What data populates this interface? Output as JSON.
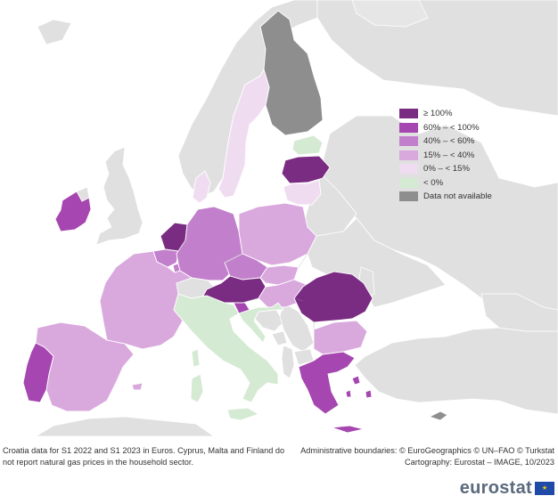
{
  "colors": {
    "sea": "#ffffff",
    "land_other": "#e0e0e0",
    "border": "#9b9b9b",
    "ge100": "#7a2b82",
    "r60_100": "#a646b0",
    "r40_60": "#c27fcb",
    "r15_40": "#d9a9de",
    "r0_15": "#f0dcf1",
    "neg": "#d5ead3",
    "na": "#8e8e8e",
    "brand": "#5b6a7d",
    "flag": "#1f4aa8"
  },
  "legend": [
    {
      "label": "≥ 100%",
      "color": "#7a2b82"
    },
    {
      "label": "60% – < 100%",
      "color": "#a646b0"
    },
    {
      "label": "40% – < 60%",
      "color": "#c27fcb"
    },
    {
      "label": "15% – < 40%",
      "color": "#d9a9de"
    },
    {
      "label": "0% – < 15%",
      "color": "#f0dcf1"
    },
    {
      "label": "< 0%",
      "color": "#d5ead3"
    },
    {
      "label": "Data not available",
      "color": "#8e8e8e"
    }
  ],
  "footnote_left": "Croatia data for S1 2022 and S1 2023 in Euros. Cyprus, Malta and Finland do not report natural gas prices in the household sector.",
  "footnote_right_1": "Administrative boundaries: © EuroGeographics © UN–FAO © Turkstat",
  "footnote_right_2": "Cartography: Eurostat – IMAGE, 10/2023",
  "brand": "eurostat",
  "flag_icon": "★",
  "map": {
    "regions": [
      {
        "id": "romania",
        "category": "ge100"
      },
      {
        "id": "austria",
        "category": "ge100"
      },
      {
        "id": "latvia",
        "category": "ge100"
      },
      {
        "id": "netherlands",
        "category": "ge100"
      },
      {
        "id": "ireland",
        "category": "r60_100"
      },
      {
        "id": "portugal",
        "category": "r60_100"
      },
      {
        "id": "greece",
        "category": "r60_100"
      },
      {
        "id": "slovenia",
        "category": "r60_100"
      },
      {
        "id": "germany",
        "category": "r40_60"
      },
      {
        "id": "czechia",
        "category": "r40_60"
      },
      {
        "id": "belgium",
        "category": "r40_60"
      },
      {
        "id": "luxembourg",
        "category": "r40_60"
      },
      {
        "id": "france",
        "category": "r15_40"
      },
      {
        "id": "spain",
        "category": "r15_40"
      },
      {
        "id": "poland",
        "category": "r15_40"
      },
      {
        "id": "slovakia",
        "category": "r15_40"
      },
      {
        "id": "hungary",
        "category": "r15_40"
      },
      {
        "id": "bulgaria",
        "category": "r15_40"
      },
      {
        "id": "sweden",
        "category": "r0_15"
      },
      {
        "id": "denmark",
        "category": "r0_15"
      },
      {
        "id": "lithuania",
        "category": "r0_15"
      },
      {
        "id": "italy",
        "category": "neg"
      },
      {
        "id": "estonia",
        "category": "neg"
      },
      {
        "id": "croatia",
        "category": "neg"
      },
      {
        "id": "finland",
        "category": "na"
      },
      {
        "id": "cyprus",
        "category": "na"
      }
    ]
  }
}
